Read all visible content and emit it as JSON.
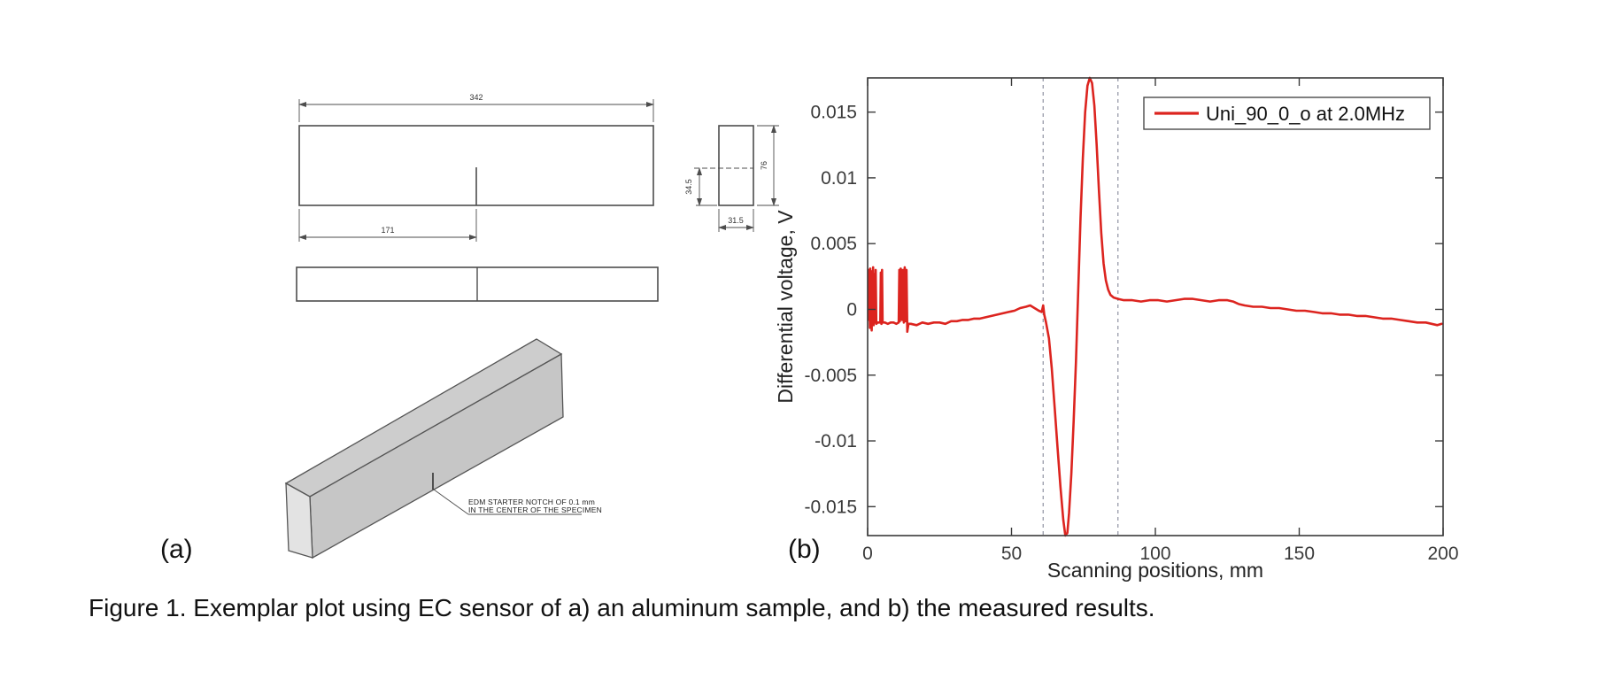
{
  "figure": {
    "caption": "Figure 1. Exemplar plot using EC sensor of a) an aluminum sample, and b) the measured results."
  },
  "panel_a": {
    "label": "(a)",
    "dimensions": {
      "overall_length": "342",
      "notch_position": "171",
      "section_width": "31.5",
      "notch_height": "34.5",
      "section_height": "76"
    },
    "annotation": {
      "line1": "EDM STARTER NOTCH OF 0.1 mm",
      "line2": "IN THE CENTER OF THE SPECIMEN"
    }
  },
  "panel_b": {
    "label": "(b)"
  },
  "chart_data": {
    "type": "line",
    "title": "",
    "xlabel": "Scanning positions, mm",
    "ylabel": "Differential voltage, V",
    "xlim": [
      0,
      200
    ],
    "ylim": [
      -0.0172,
      0.0176
    ],
    "xticks": [
      0,
      50,
      100,
      150,
      200
    ],
    "xtick_labels": [
      "0",
      "50",
      "100",
      "150",
      "200"
    ],
    "yticks": [
      0.015,
      0.01,
      0.005,
      0,
      -0.005,
      -0.01,
      -0.015
    ],
    "ytick_labels": [
      "0.015",
      "0.01",
      "0.005",
      "0",
      "-0.005",
      "-0.01",
      "-0.015"
    ],
    "grid": false,
    "legend": {
      "position": "top-right",
      "entries": [
        {
          "label": "Uni_90_0_o at 2.0MHz",
          "color": "#dc241f"
        }
      ]
    },
    "reference_lines": {
      "x": [
        61,
        87
      ],
      "style": "dashed",
      "color": "#8f93a2"
    },
    "series": [
      {
        "name": "Uni_90_0_o at 2.0MHz",
        "color": "#dc241f",
        "points": [
          [
            0.3,
            0.0012
          ],
          [
            0.4,
            0.003
          ],
          [
            0.5,
            -0.0008
          ],
          [
            0.6,
            0.0028
          ],
          [
            0.8,
            -0.0014
          ],
          [
            0.9,
            0.0031
          ],
          [
            1.1,
            -0.0005
          ],
          [
            1.2,
            0.0026
          ],
          [
            1.4,
            -0.0016
          ],
          [
            1.5,
            0.0029
          ],
          [
            1.7,
            -0.001
          ],
          [
            1.9,
            0.0032
          ],
          [
            2.1,
            -0.0012
          ],
          [
            2.3,
            0.0027
          ],
          [
            2.5,
            -0.001
          ],
          [
            2.8,
            0.003
          ],
          [
            3.0,
            -0.0011
          ],
          [
            3.5,
            -0.001
          ],
          [
            4.4,
            -0.001
          ],
          [
            4.6,
            0.0028
          ],
          [
            4.8,
            -0.0011
          ],
          [
            5.0,
            0.003
          ],
          [
            5.2,
            -0.001
          ],
          [
            6,
            -0.001
          ],
          [
            7,
            -0.0011
          ],
          [
            8,
            -0.001
          ],
          [
            9,
            -0.001
          ],
          [
            10,
            -0.0011
          ],
          [
            10.8,
            -0.001
          ],
          [
            11.0,
            0.003
          ],
          [
            11.2,
            -0.0009
          ],
          [
            11.5,
            0.0031
          ],
          [
            11.8,
            0.0028
          ],
          [
            12.0,
            -0.0008
          ],
          [
            12.3,
            0.003
          ],
          [
            12.6,
            -0.001
          ],
          [
            12.9,
            0.0032
          ],
          [
            13.2,
            -0.0009
          ],
          [
            13.5,
            0.003
          ],
          [
            13.8,
            -0.0017
          ],
          [
            14.2,
            -0.0011
          ],
          [
            15,
            -0.0011
          ],
          [
            17,
            -0.0012
          ],
          [
            19,
            -0.001
          ],
          [
            21,
            -0.0011
          ],
          [
            23,
            -0.001
          ],
          [
            25,
            -0.001
          ],
          [
            27,
            -0.0011
          ],
          [
            29,
            -0.0009
          ],
          [
            31,
            -0.0009
          ],
          [
            33,
            -0.0008
          ],
          [
            35,
            -0.0008
          ],
          [
            37,
            -0.0007
          ],
          [
            39,
            -0.0007
          ],
          [
            41,
            -0.0006
          ],
          [
            43,
            -0.0005
          ],
          [
            45,
            -0.0004
          ],
          [
            47,
            -0.0003
          ],
          [
            49,
            -0.0002
          ],
          [
            51,
            -0.0001
          ],
          [
            53,
            0.0001
          ],
          [
            55,
            0.0002
          ],
          [
            56.5,
            0.0003
          ],
          [
            58,
            0.0001
          ],
          [
            59.5,
            -0.0001
          ],
          [
            60.5,
            -0.0002
          ],
          [
            61.0,
            0.0003
          ],
          [
            61.4,
            -0.0004
          ],
          [
            62,
            -0.001
          ],
          [
            63,
            -0.0022
          ],
          [
            64,
            -0.0045
          ],
          [
            65,
            -0.0075
          ],
          [
            66,
            -0.0105
          ],
          [
            67,
            -0.0135
          ],
          [
            68,
            -0.016
          ],
          [
            68.7,
            -0.0172
          ],
          [
            69.4,
            -0.017
          ],
          [
            70,
            -0.0155
          ],
          [
            70.8,
            -0.0125
          ],
          [
            71.6,
            -0.0085
          ],
          [
            72.4,
            -0.004
          ],
          [
            73.2,
            0.0015
          ],
          [
            74,
            0.007
          ],
          [
            74.8,
            0.0115
          ],
          [
            75.6,
            0.015
          ],
          [
            76.4,
            0.017
          ],
          [
            77.2,
            0.0176
          ],
          [
            78,
            0.0172
          ],
          [
            78.8,
            0.0155
          ],
          [
            79.6,
            0.0125
          ],
          [
            80.4,
            0.009
          ],
          [
            81.2,
            0.0058
          ],
          [
            82,
            0.0035
          ],
          [
            82.8,
            0.0022
          ],
          [
            83.6,
            0.0015
          ],
          [
            84.4,
            0.0011
          ],
          [
            85.5,
            0.0009
          ],
          [
            87,
            0.0008
          ],
          [
            89,
            0.0007
          ],
          [
            92,
            0.0007
          ],
          [
            95,
            0.0006
          ],
          [
            98,
            0.0007
          ],
          [
            101,
            0.0007
          ],
          [
            104,
            0.0006
          ],
          [
            107,
            0.0007
          ],
          [
            110,
            0.0008
          ],
          [
            113,
            0.0008
          ],
          [
            116,
            0.0007
          ],
          [
            119,
            0.0006
          ],
          [
            122,
            0.0007
          ],
          [
            125,
            0.0007
          ],
          [
            127,
            0.0006
          ],
          [
            129,
            0.0004
          ],
          [
            131,
            0.0003
          ],
          [
            134,
            0.0002
          ],
          [
            137,
            0.0002
          ],
          [
            140,
            0.0001
          ],
          [
            143,
            0.0001
          ],
          [
            146,
            0.0
          ],
          [
            149,
            -0.0001
          ],
          [
            152,
            -0.0001
          ],
          [
            155,
            -0.0002
          ],
          [
            158,
            -0.0003
          ],
          [
            161,
            -0.0003
          ],
          [
            164,
            -0.0004
          ],
          [
            167,
            -0.0004
          ],
          [
            170,
            -0.0005
          ],
          [
            173,
            -0.0005
          ],
          [
            176,
            -0.0006
          ],
          [
            179,
            -0.0007
          ],
          [
            182,
            -0.0007
          ],
          [
            185,
            -0.0008
          ],
          [
            188,
            -0.0009
          ],
          [
            191,
            -0.001
          ],
          [
            194,
            -0.001
          ],
          [
            196,
            -0.0011
          ],
          [
            198,
            -0.0012
          ],
          [
            199.5,
            -0.0011
          ]
        ]
      }
    ]
  }
}
